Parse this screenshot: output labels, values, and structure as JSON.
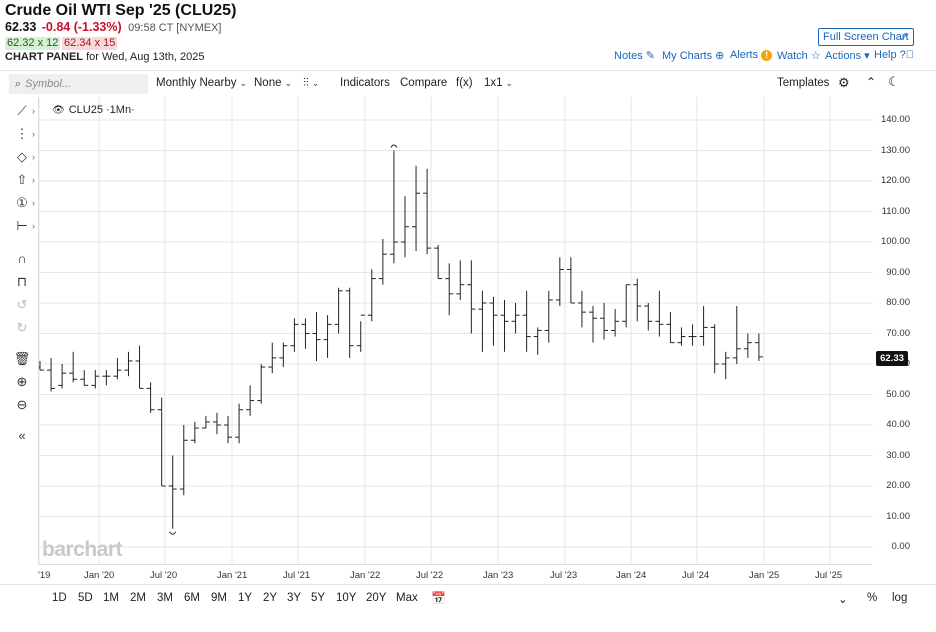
{
  "header": {
    "title": "Crude Oil WTI Sep '25 (CLU25)",
    "last": "62.33",
    "change": "-0.84 (-1.33%)",
    "time": "09:58 CT [NYMEX]",
    "bid": "62.32 x 12",
    "ask": "62.34 x 15",
    "panel_label": "CHART PANEL",
    "panel_date": "for Wed, Aug 13th, 2025"
  },
  "topbar": {
    "fullscreen": "Full Screen Chart",
    "notes": "Notes",
    "mycharts": "My Charts",
    "alerts": "Alerts",
    "watch": "Watch",
    "actions": "Actions",
    "help": "Help"
  },
  "toolbar": {
    "search_placeholder": "Symbol...",
    "period": "Monthly Nearby",
    "compare_mode": "None",
    "indicators": "Indicators",
    "compare": "Compare",
    "fx": "f(x)",
    "layout": "1x1",
    "templates": "Templates"
  },
  "series_label": "CLU25 ·1Mn·",
  "last_badge": "62.33",
  "watermark": "barchart",
  "bottom": {
    "periods": [
      "1D",
      "5D",
      "1M",
      "2M",
      "3M",
      "6M",
      "9M",
      "1Y",
      "2Y",
      "3Y",
      "5Y",
      "10Y",
      "20Y",
      "Max"
    ],
    "pct": "%",
    "log": "log"
  },
  "chart_data": {
    "type": "bar",
    "subtype": "ohlc",
    "symbol": "CLU25",
    "interval": "1 month",
    "y_ticks": [
      "140.00",
      "130.00",
      "120.00",
      "110.00",
      "100.00",
      "90.00",
      "80.00",
      "70.00",
      "60.00",
      "50.00",
      "40.00",
      "30.00",
      "20.00",
      "10.00",
      "0.00"
    ],
    "ylim": [
      -5,
      145
    ],
    "x_ticks": [
      "'19",
      "Jan '20",
      "Jul '20",
      "Jan '21",
      "Jul '21",
      "Jan '22",
      "Jul '22",
      "Jan '23",
      "Jul '23",
      "Jan '24",
      "Jul '24",
      "Jan '25",
      "Jul '25"
    ],
    "grid": true,
    "last_price": 62.33,
    "bars": [
      [
        59,
        61,
        58,
        58
      ],
      [
        58,
        62,
        51,
        52
      ],
      [
        53,
        60,
        52,
        57
      ],
      [
        57,
        64,
        54,
        55
      ],
      [
        55,
        58,
        53,
        53
      ],
      [
        53,
        58,
        52,
        56
      ],
      [
        56,
        58,
        53,
        56
      ],
      [
        56,
        62,
        55,
        58
      ],
      [
        58,
        64,
        56,
        61
      ],
      [
        61,
        66,
        52,
        52
      ],
      [
        52,
        54,
        44,
        45
      ],
      [
        45,
        49,
        20,
        20
      ],
      [
        20,
        30,
        6,
        19
      ],
      [
        19,
        40,
        17,
        35
      ],
      [
        35,
        41,
        34,
        39
      ],
      [
        39,
        43,
        39,
        41
      ],
      [
        41,
        44,
        37,
        40
      ],
      [
        40,
        43,
        34,
        36
      ],
      [
        36,
        47,
        34,
        45
      ],
      [
        45,
        53,
        43,
        48
      ],
      [
        48,
        60,
        47,
        59
      ],
      [
        59,
        67,
        57,
        62
      ],
      [
        62,
        67,
        59,
        66
      ],
      [
        66,
        75,
        64,
        73
      ],
      [
        73,
        75,
        65,
        70
      ],
      [
        70,
        77,
        61,
        68
      ],
      [
        68,
        76,
        62,
        73
      ],
      [
        73,
        85,
        70,
        84
      ],
      [
        84,
        85,
        62,
        66
      ],
      [
        66,
        74,
        64,
        76
      ],
      [
        76,
        91,
        74,
        88
      ],
      [
        88,
        101,
        86,
        96
      ],
      [
        96,
        130,
        93,
        100
      ],
      [
        100,
        115,
        95,
        105
      ],
      [
        105,
        125,
        97,
        116
      ],
      [
        116,
        124,
        96,
        98
      ],
      [
        98,
        99,
        88,
        88
      ],
      [
        88,
        93,
        76,
        83
      ],
      [
        83,
        94,
        81,
        86
      ],
      [
        86,
        94,
        70,
        78
      ],
      [
        78,
        84,
        64,
        80
      ],
      [
        80,
        82,
        66,
        76
      ],
      [
        76,
        81,
        64,
        74
      ],
      [
        74,
        80,
        70,
        76
      ],
      [
        76,
        84,
        64,
        69
      ],
      [
        69,
        72,
        63,
        71
      ],
      [
        71,
        84,
        67,
        81
      ],
      [
        81,
        95,
        79,
        91
      ],
      [
        91,
        95,
        80,
        80
      ],
      [
        80,
        84,
        72,
        77
      ],
      [
        77,
        79,
        67,
        75
      ],
      [
        75,
        80,
        68,
        71
      ],
      [
        71,
        78,
        69,
        74
      ],
      [
        74,
        86,
        72,
        86
      ],
      [
        86,
        88,
        74,
        79
      ],
      [
        79,
        80,
        71,
        74
      ],
      [
        74,
        84,
        69,
        73
      ],
      [
        73,
        77,
        67,
        67
      ],
      [
        67,
        72,
        66,
        69
      ],
      [
        69,
        73,
        66,
        69
      ],
      [
        69,
        79,
        66,
        72
      ],
      [
        72,
        73,
        57,
        60
      ],
      [
        60,
        64,
        55,
        62
      ],
      [
        62,
        79,
        60,
        65
      ],
      [
        65,
        70,
        62,
        67
      ],
      [
        67,
        70,
        61,
        62.33
      ]
    ]
  }
}
